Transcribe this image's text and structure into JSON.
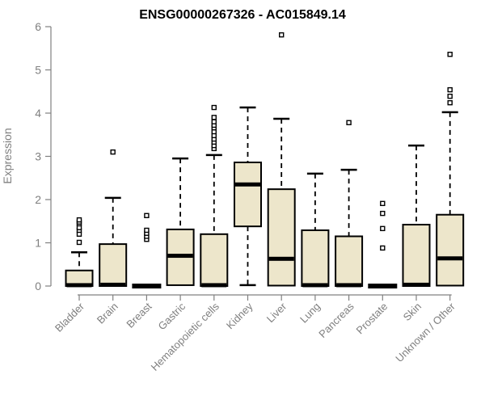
{
  "chart_data": {
    "type": "boxplot",
    "title": "ENSG00000267326 - AC015849.14",
    "ylabel": "Expression",
    "ylim": [
      0,
      6
    ],
    "yticks": [
      0,
      1,
      2,
      3,
      4,
      5,
      6
    ],
    "grid": "off",
    "categories": [
      "Bladder",
      "Brain",
      "Breast",
      "Gastric",
      "Hematopoietic cells",
      "Kidney",
      "Liver",
      "Lung",
      "Pancreas",
      "Prostate",
      "Skin",
      "Unknown / Other"
    ],
    "boxes": [
      {
        "category": "Bladder",
        "low": 0,
        "q1": 0,
        "median": 0.02,
        "q3": 0.36,
        "high": 0.78,
        "outliers": [
          1.01,
          1.2,
          1.29,
          1.35,
          1.44,
          1.48,
          1.53
        ]
      },
      {
        "category": "Brain",
        "low": 0,
        "q1": 0,
        "median": 0.03,
        "q3": 0.97,
        "high": 2.04,
        "outliers": [
          3.1
        ]
      },
      {
        "category": "Breast",
        "low": 0,
        "q1": 0,
        "median": 0,
        "q3": 0,
        "high": 0,
        "outliers": [
          1.08,
          1.15,
          1.22,
          1.29,
          1.63
        ]
      },
      {
        "category": "Gastric",
        "low": 0,
        "q1": 0.02,
        "median": 0.7,
        "q3": 1.31,
        "high": 2.95,
        "outliers": []
      },
      {
        "category": "Hematopoietic cells",
        "low": 0,
        "q1": 0,
        "median": 0.02,
        "q3": 1.2,
        "high": 3.03,
        "outliers": [
          3.18,
          3.25,
          3.33,
          3.4,
          3.48,
          3.57,
          3.66,
          3.72,
          3.8,
          3.9,
          4.13
        ]
      },
      {
        "category": "Kidney",
        "low": 0.02,
        "q1": 1.38,
        "median": 2.35,
        "q3": 2.86,
        "high": 4.13,
        "outliers": []
      },
      {
        "category": "Liver",
        "low": 0,
        "q1": 0.01,
        "median": 0.63,
        "q3": 2.24,
        "high": 3.87,
        "outliers": [
          5.81
        ]
      },
      {
        "category": "Lung",
        "low": 0,
        "q1": 0,
        "median": 0.02,
        "q3": 1.29,
        "high": 2.6,
        "outliers": []
      },
      {
        "category": "Pancreas",
        "low": 0,
        "q1": 0,
        "median": 0.02,
        "q3": 1.15,
        "high": 2.69,
        "outliers": [
          3.78
        ]
      },
      {
        "category": "Prostate",
        "low": 0,
        "q1": 0,
        "median": 0,
        "q3": 0,
        "high": 0,
        "outliers": [
          0.88,
          1.33,
          1.68,
          1.91
        ]
      },
      {
        "category": "Skin",
        "low": 0,
        "q1": 0,
        "median": 0.03,
        "q3": 1.42,
        "high": 3.25,
        "outliers": []
      },
      {
        "category": "Unknown / Other",
        "low": 0,
        "q1": 0.01,
        "median": 0.64,
        "q3": 1.65,
        "high": 4.02,
        "outliers": [
          4.24,
          4.39,
          4.54,
          5.36
        ]
      }
    ],
    "colors": {
      "box_fill": "#EDE6CB",
      "box_stroke": "#000000",
      "median": "#000000",
      "whisker": "#000000",
      "outlier_fill": "#FFFFFF",
      "axis": "#808080",
      "tick_label": "#7F7F7F",
      "title": "#000000",
      "background": "#FFFFFF"
    }
  }
}
